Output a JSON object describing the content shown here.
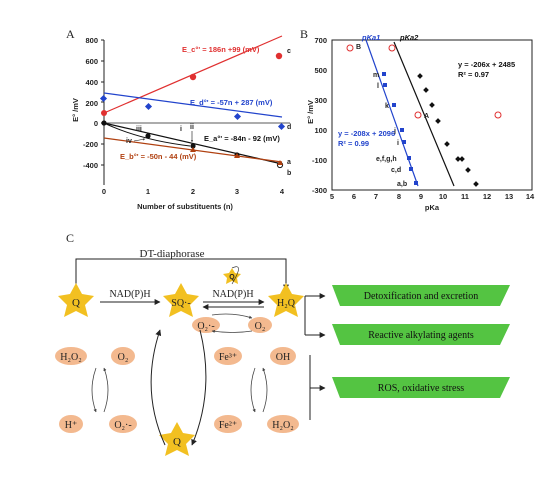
{
  "panel_a": {
    "letter": "A",
    "yaxis_label": "E° /mV",
    "xaxis_label": "Number of substituents (n)",
    "yticks": [
      "800",
      "600",
      "400",
      "200",
      "0",
      "-200",
      "-400"
    ],
    "xticks": [
      "0",
      "1",
      "2",
      "3",
      "4"
    ],
    "eq_c": "E_c°' = 186n +99 (mV)",
    "eq_d": "E_d°' = -57n + 287 (mV)",
    "eq_a": "E_a°' = -84n - 92 (mV)",
    "eq_b": "E_b°' = -50n - 44 (mV)",
    "line_c": "c",
    "line_d": "d",
    "line_a": "a",
    "line_b": "b",
    "pt_iii": "iii",
    "pt_iv": "iv",
    "pt_i": "i",
    "pt_ii": "ii",
    "colors": {
      "red": "#e03030",
      "blue": "#2244cc",
      "black": "#111111",
      "brown": "#b04010"
    }
  },
  "panel_b": {
    "letter": "B",
    "yaxis_label": "E° /mV",
    "xaxis_label": "pKa",
    "yticks": [
      "700",
      "500",
      "300",
      "100",
      "-100",
      "-300"
    ],
    "xticks": [
      "5",
      "6",
      "7",
      "8",
      "9",
      "10",
      "11",
      "12",
      "13",
      "14"
    ],
    "series1_name": "pKa1",
    "series2_name": "pKa2",
    "eq_black": "y = -206x + 2485",
    "r2_black": "R² = 0.97",
    "eq_blue": "y = -208x + 2096",
    "r2_blue": "R² = 0.99",
    "lbl_B": "B",
    "lbl_A": "A",
    "lbl_m": "m",
    "lbl_l": "l",
    "lbl_k": "k",
    "lbl_j": "j",
    "lbl_i": "i",
    "lbl_efgh": "e,f,g,h",
    "lbl_cd": "c,d",
    "lbl_ab": "a,b"
  },
  "panel_c": {
    "letter": "C",
    "dt_diaphorase": "DT-diaphorase",
    "nadph_1": "NAD(P)H",
    "nadph_2": "NAD(P)H",
    "q_left": "Q",
    "sq": "SQ·-",
    "h2q": "H₂Q",
    "q_small": "Q",
    "q_bottom": "Q",
    "o2_minus_top": "O₂·-",
    "o2_top": "O₂",
    "h2o2_left": "H₂O₂",
    "o2_left": "O₂",
    "h_plus": "H⁺",
    "o2_minus_left": "O₂·-",
    "fe3": "Fe³⁺",
    "fe2": "Fe²⁺",
    "oh": "OH",
    "h2o2_right": "H₂O₂",
    "out1": "Detoxification and excretion",
    "out2": "Reactive alkylating agents",
    "out3": "ROS, oxidative stress"
  }
}
